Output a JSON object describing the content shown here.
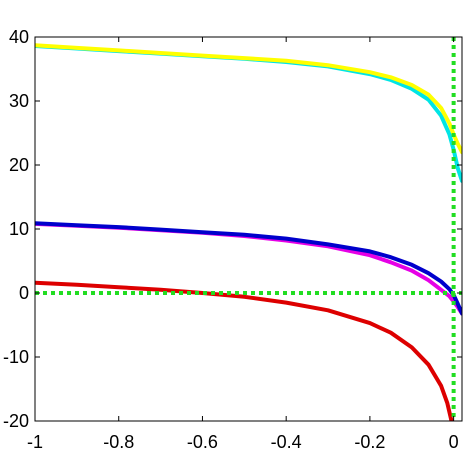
{
  "chart_data": {
    "type": "line",
    "title": "",
    "xlabel": "",
    "ylabel": "",
    "xlim": [
      -1,
      0.02
    ],
    "ylim": [
      -20,
      40
    ],
    "xticks": [
      -1,
      -0.8,
      -0.6,
      -0.4,
      -0.2,
      0
    ],
    "xtick_labels": [
      "-1",
      "-0.8",
      "-0.6",
      "-0.4",
      "-0.2",
      "0"
    ],
    "yticks": [
      -20,
      -10,
      0,
      10,
      20,
      30,
      40
    ],
    "ytick_labels": [
      "-20",
      "-10",
      "0",
      "10",
      "20",
      "30",
      "40"
    ],
    "grid": false,
    "legend": "none",
    "series": [
      {
        "color": "#00e5e5",
        "x": [
          -1,
          -0.9,
          -0.8,
          -0.7,
          -0.6,
          -0.5,
          -0.4,
          -0.3,
          -0.2,
          -0.15,
          -0.1,
          -0.06,
          -0.03,
          -0.01,
          0,
          0.01,
          0.02
        ],
        "y": [
          38.6,
          38.2,
          37.8,
          37.4,
          37.0,
          36.6,
          36.1,
          35.4,
          34.2,
          33.3,
          31.9,
          30.2,
          27.7,
          24.8,
          22.4,
          19.5,
          17.5
        ]
      },
      {
        "color": "#ffff00",
        "x": [
          -1,
          -0.9,
          -0.8,
          -0.7,
          -0.6,
          -0.5,
          -0.4,
          -0.3,
          -0.2,
          -0.15,
          -0.1,
          -0.06,
          -0.03,
          -0.01,
          0,
          0.01,
          0.02
        ],
        "y": [
          38.7,
          38.3,
          37.9,
          37.5,
          37.1,
          36.7,
          36.3,
          35.6,
          34.5,
          33.7,
          32.5,
          31.0,
          28.9,
          26.5,
          24.8,
          23.3,
          22.0
        ]
      },
      {
        "color": "#e600e6",
        "x": [
          -1,
          -0.9,
          -0.8,
          -0.7,
          -0.6,
          -0.5,
          -0.4,
          -0.3,
          -0.2,
          -0.15,
          -0.1,
          -0.06,
          -0.03,
          -0.01,
          0,
          0.01,
          0.02
        ],
        "y": [
          10.8,
          10.5,
          10.2,
          9.8,
          9.4,
          8.9,
          8.2,
          7.3,
          5.9,
          4.8,
          3.5,
          2.0,
          0.5,
          -0.5,
          -1.3,
          -2.2,
          -3.2
        ]
      },
      {
        "color": "#0000cc",
        "x": [
          -1,
          -0.9,
          -0.8,
          -0.7,
          -0.6,
          -0.5,
          -0.4,
          -0.3,
          -0.2,
          -0.15,
          -0.1,
          -0.06,
          -0.03,
          -0.01,
          0,
          0.01,
          0.02
        ],
        "y": [
          10.9,
          10.6,
          10.3,
          9.9,
          9.5,
          9.1,
          8.5,
          7.6,
          6.5,
          5.6,
          4.4,
          3.1,
          1.8,
          0.6,
          -0.3,
          -1.7,
          -3.2
        ]
      },
      {
        "color": "#dd0000",
        "x": [
          -1,
          -0.9,
          -0.8,
          -0.7,
          -0.6,
          -0.5,
          -0.4,
          -0.3,
          -0.2,
          -0.15,
          -0.1,
          -0.06,
          -0.03,
          -0.015,
          -0.005
        ],
        "y": [
          1.6,
          1.3,
          0.9,
          0.5,
          0.0,
          -0.6,
          -1.5,
          -2.7,
          -4.7,
          -6.2,
          -8.5,
          -11.2,
          -14.5,
          -17.2,
          -20.0
        ]
      }
    ],
    "reference_lines": [
      {
        "orientation": "horizontal",
        "value": 0,
        "color": "#22dd22",
        "style": "dotted"
      },
      {
        "orientation": "vertical",
        "value": 0,
        "color": "#22dd22",
        "style": "dotted"
      }
    ]
  }
}
